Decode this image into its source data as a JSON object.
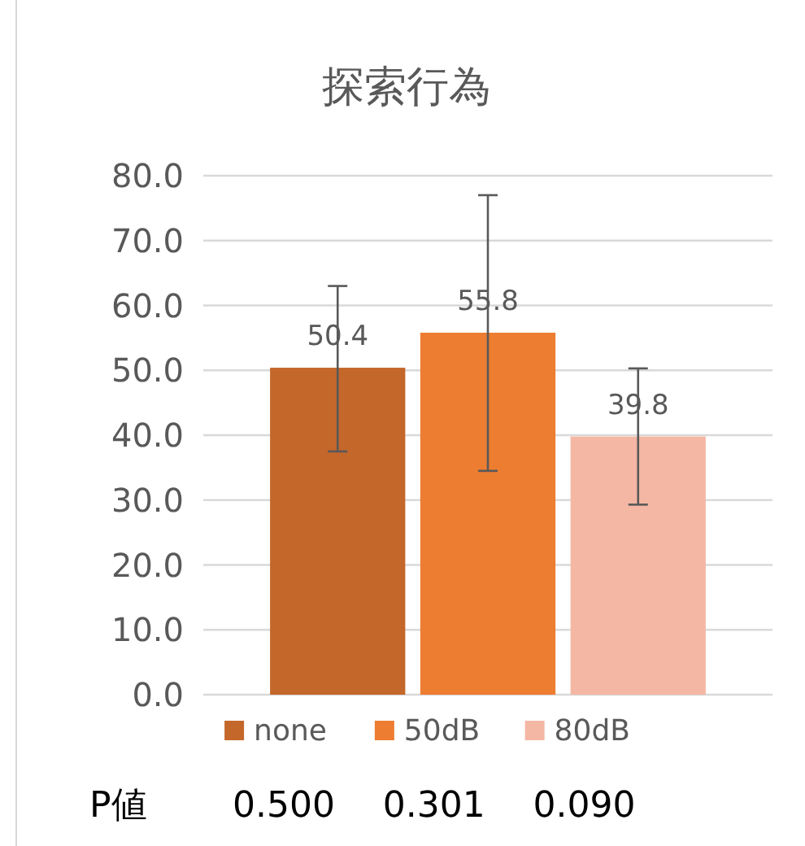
{
  "chart_data": {
    "type": "bar",
    "title": "探索行為",
    "categories": [
      null
    ],
    "series": [
      {
        "name": "none",
        "color": "#c4672a",
        "values": [
          50.4
        ],
        "errors": [
          [
            37.5,
            63.0
          ]
        ]
      },
      {
        "name": "50dB",
        "color": "#ed7d31",
        "values": [
          55.8
        ],
        "errors": [
          [
            34.5,
            77.0
          ]
        ]
      },
      {
        "name": "80dB",
        "color": "#f4b7a4",
        "values": [
          39.8
        ],
        "errors": [
          [
            29.3,
            50.3
          ]
        ]
      }
    ],
    "ylim": [
      0,
      80
    ],
    "yticks": [
      {
        "value": 0,
        "label": "0.0"
      },
      {
        "value": 10,
        "label": "10.0"
      },
      {
        "value": 20,
        "label": "20.0"
      },
      {
        "value": 30,
        "label": "30.0"
      },
      {
        "value": 40,
        "label": "40.0"
      },
      {
        "value": 50,
        "label": "50.0"
      },
      {
        "value": 60,
        "label": "60.0"
      },
      {
        "value": 70,
        "label": "70.0"
      },
      {
        "value": 80,
        "label": "80.0"
      }
    ],
    "grid": "y",
    "legend": "bottom",
    "data_labels": true,
    "annotations": [
      "P値",
      "0.500",
      "0.301",
      "0.090"
    ]
  }
}
